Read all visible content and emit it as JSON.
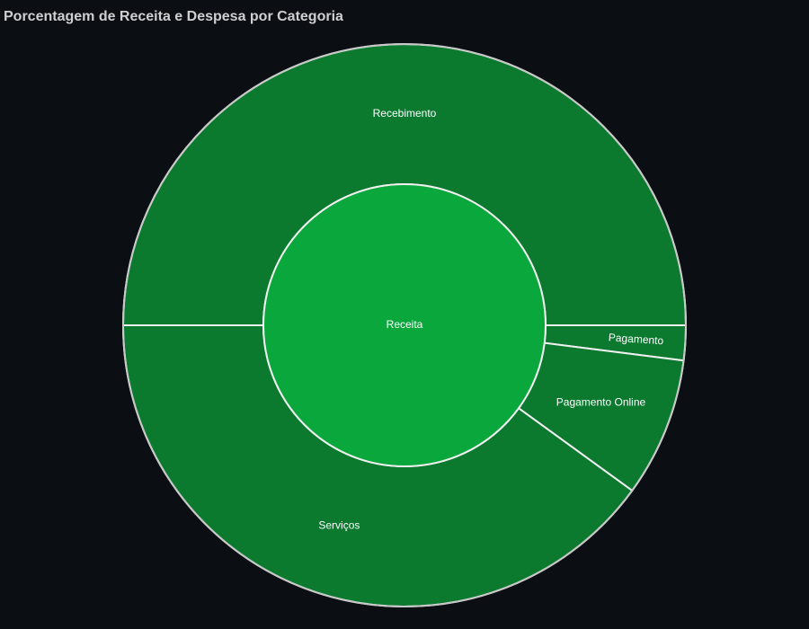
{
  "chart_data": {
    "type": "sunburst",
    "title": "Porcentagem de Receita e Despesa por Categoria",
    "center": {
      "label": "Receita",
      "value": 100,
      "color": "#0aa83c"
    },
    "children": [
      {
        "label": "Recebimento",
        "value": 50,
        "color": "#0b7a2f"
      },
      {
        "label": "Pagamento",
        "value": 2,
        "color": "#0b7a2f"
      },
      {
        "label": "Pagamento Online",
        "value": 8,
        "color": "#0b7a2f"
      },
      {
        "label": "Serviços",
        "value": 40,
        "color": "#0b7a2f"
      }
    ],
    "colors": {
      "background": "#0b0f14",
      "outline": "#c8c8c8",
      "separator": "#f0f0f0",
      "title": "#cfcfcf"
    }
  }
}
